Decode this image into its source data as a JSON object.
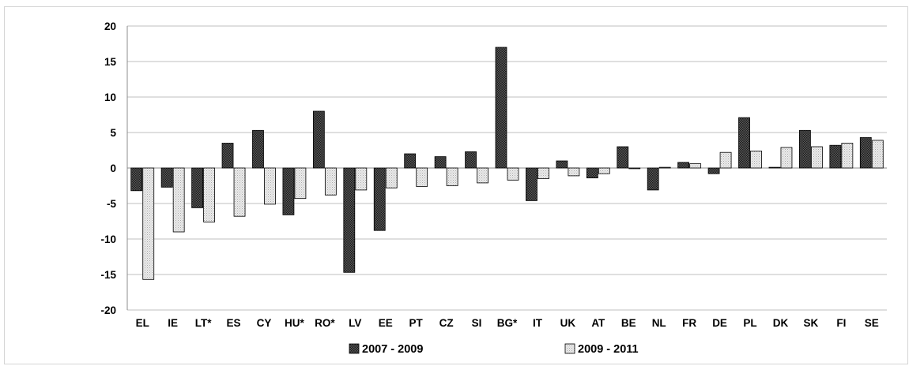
{
  "chart_data": {
    "type": "bar",
    "title": "",
    "xlabel": "",
    "ylabel": "",
    "ylim": [
      -20,
      20
    ],
    "yticks": [
      20,
      15,
      10,
      5,
      0,
      -5,
      -10,
      -15,
      -20
    ],
    "grid": true,
    "legend_position": "bottom",
    "categories": [
      "EL",
      "IE",
      "LT*",
      "ES",
      "CY",
      "HU*",
      "RO*",
      "LV",
      "EE",
      "PT",
      "CZ",
      "SI",
      "BG*",
      "IT",
      "UK",
      "AT",
      "BE",
      "NL",
      "FR",
      "DE",
      "PL",
      "DK",
      "SK",
      "FI",
      "SE"
    ],
    "series": [
      {
        "name": "2007 - 2009",
        "pattern": "dark-crosshatch",
        "color": "#3a3a3a",
        "values": [
          -3.2,
          -2.7,
          -5.6,
          3.5,
          5.3,
          -6.6,
          8.0,
          -14.7,
          -8.8,
          2.0,
          1.6,
          2.3,
          17.0,
          -4.6,
          1.0,
          -1.4,
          3.0,
          -3.1,
          0.8,
          -0.8,
          7.1,
          0.1,
          5.3,
          3.2,
          4.3
        ]
      },
      {
        "name": "2009 - 2011",
        "pattern": "light-dots",
        "color": "#d9d9d9",
        "values": [
          -15.7,
          -9.0,
          -7.6,
          -6.8,
          -5.1,
          -4.3,
          -3.8,
          -3.1,
          -2.8,
          -2.6,
          -2.5,
          -2.1,
          -1.7,
          -1.5,
          -1.1,
          -0.8,
          -0.1,
          0.1,
          0.6,
          2.2,
          2.4,
          2.9,
          3.0,
          3.5,
          3.9
        ]
      }
    ]
  }
}
